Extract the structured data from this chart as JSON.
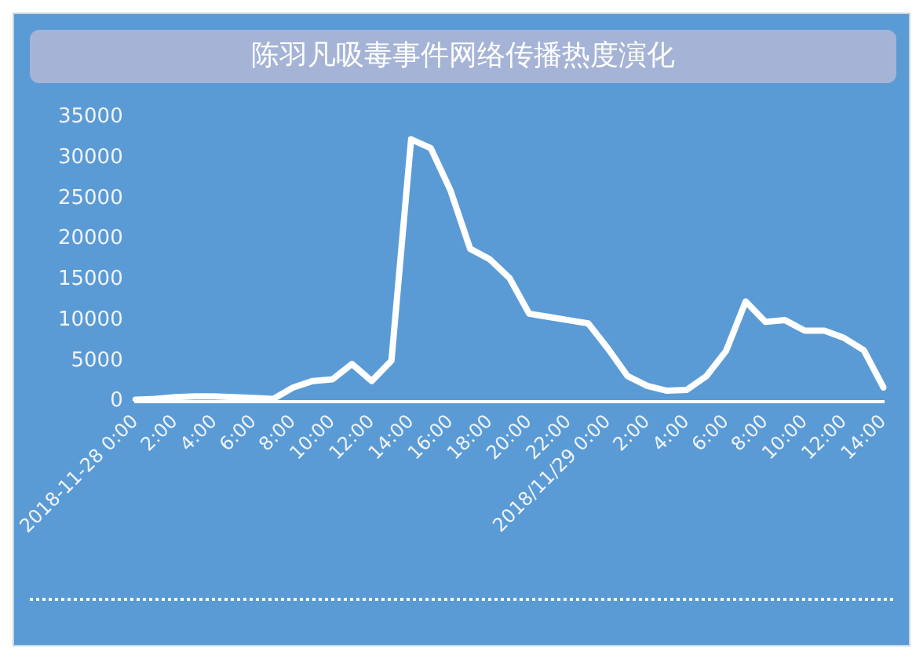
{
  "chart_data": {
    "type": "line",
    "title": "陈羽凡吸毒事件网络传播热度演化",
    "categories": [
      "2018-11-28 0:00",
      null,
      "2:00",
      null,
      "4:00",
      null,
      "6:00",
      null,
      "8:00",
      null,
      "10:00",
      null,
      "12:00",
      null,
      "14:00",
      null,
      "16:00",
      null,
      "18:00",
      null,
      "20:00",
      null,
      "22:00",
      null,
      "2018/11/29 0:00",
      null,
      "2:00",
      null,
      "4:00",
      null,
      "6:00",
      null,
      "8:00",
      null,
      "10:00",
      null,
      "12:00",
      null,
      "14:00"
    ],
    "series": [
      {
        "color": "#ffffff",
        "values": [
          200,
          300,
          500,
          600,
          600,
          500,
          400,
          300,
          1700,
          2500,
          2700,
          4600,
          2500,
          5000,
          32300,
          31200,
          26000,
          18800,
          17500,
          15200,
          10800,
          10400,
          10000,
          9600,
          6500,
          3100,
          1900,
          1300,
          1400,
          3100,
          6200,
          12300,
          9800,
          10000,
          8700,
          8700,
          7800,
          6300,
          1700
        ]
      }
    ],
    "ylim": [
      0,
      35000
    ],
    "yticks": [
      0,
      5000,
      10000,
      15000,
      20000,
      25000,
      30000,
      35000
    ],
    "grid": false,
    "legend": false,
    "marker": "none",
    "line_style": "solid"
  }
}
